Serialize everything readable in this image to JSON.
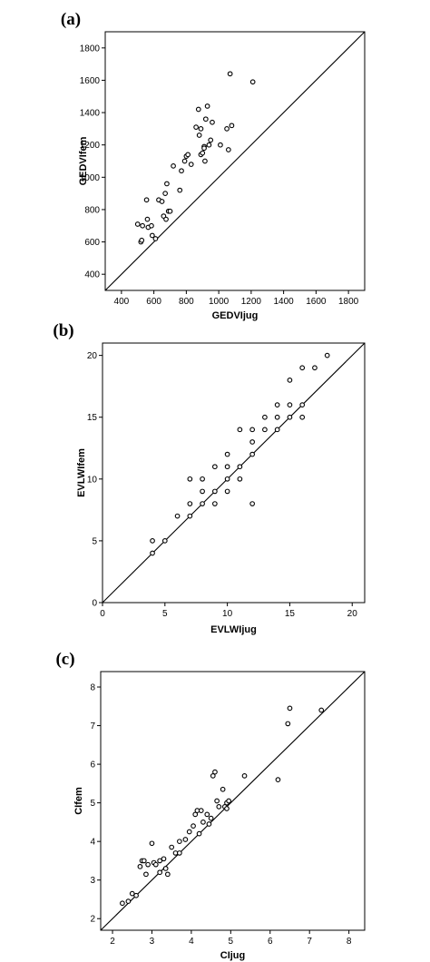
{
  "chart_data": [
    {
      "type": "scatter",
      "panel_label": "(a)",
      "xlabel": "GEDVIjug",
      "ylabel": "GEDVIfem",
      "xlim": [
        300,
        1900
      ],
      "ylim": [
        300,
        1900
      ],
      "xticks": [
        400,
        600,
        800,
        1000,
        1200,
        1400,
        1600,
        1800
      ],
      "yticks": [
        400,
        600,
        800,
        1000,
        1200,
        1400,
        1600,
        1800
      ],
      "grid": false,
      "identity_line": true,
      "points": [
        [
          500,
          710
        ],
        [
          520,
          600
        ],
        [
          525,
          610
        ],
        [
          530,
          700
        ],
        [
          555,
          860
        ],
        [
          560,
          740
        ],
        [
          565,
          690
        ],
        [
          585,
          700
        ],
        [
          590,
          640
        ],
        [
          610,
          620
        ],
        [
          630,
          860
        ],
        [
          650,
          850
        ],
        [
          660,
          760
        ],
        [
          670,
          900
        ],
        [
          675,
          740
        ],
        [
          680,
          960
        ],
        [
          690,
          790
        ],
        [
          700,
          790
        ],
        [
          720,
          1070
        ],
        [
          760,
          920
        ],
        [
          770,
          1040
        ],
        [
          790,
          1100
        ],
        [
          800,
          1130
        ],
        [
          810,
          1140
        ],
        [
          830,
          1080
        ],
        [
          860,
          1310
        ],
        [
          875,
          1420
        ],
        [
          880,
          1260
        ],
        [
          890,
          1300
        ],
        [
          890,
          1140
        ],
        [
          900,
          1150
        ],
        [
          910,
          1190
        ],
        [
          910,
          1180
        ],
        [
          915,
          1100
        ],
        [
          920,
          1360
        ],
        [
          930,
          1440
        ],
        [
          940,
          1200
        ],
        [
          950,
          1230
        ],
        [
          960,
          1340
        ],
        [
          1010,
          1200
        ],
        [
          1050,
          1300
        ],
        [
          1060,
          1170
        ],
        [
          1070,
          1640
        ],
        [
          1080,
          1320
        ],
        [
          1210,
          1590
        ]
      ]
    },
    {
      "type": "scatter",
      "panel_label": "(b)",
      "xlabel": "EVLWIjug",
      "ylabel": "EVLWIfem",
      "xlim": [
        0,
        21
      ],
      "ylim": [
        0,
        21
      ],
      "xticks": [
        0,
        5,
        10,
        15,
        20
      ],
      "yticks": [
        0,
        5,
        10,
        15,
        20
      ],
      "grid": false,
      "identity_line": true,
      "points": [
        [
          4,
          4
        ],
        [
          4,
          5
        ],
        [
          5,
          5
        ],
        [
          6,
          7
        ],
        [
          7,
          7
        ],
        [
          7,
          8
        ],
        [
          7,
          10
        ],
        [
          8,
          8
        ],
        [
          8,
          9
        ],
        [
          8,
          10
        ],
        [
          9,
          8
        ],
        [
          9,
          9
        ],
        [
          9,
          11
        ],
        [
          10,
          9
        ],
        [
          10,
          10
        ],
        [
          10,
          11
        ],
        [
          10,
          12
        ],
        [
          11,
          10
        ],
        [
          11,
          11
        ],
        [
          11,
          14
        ],
        [
          12,
          8
        ],
        [
          12,
          12
        ],
        [
          12,
          13
        ],
        [
          12,
          14
        ],
        [
          13,
          14
        ],
        [
          13,
          15
        ],
        [
          14,
          14
        ],
        [
          14,
          15
        ],
        [
          14,
          16
        ],
        [
          15,
          15
        ],
        [
          15,
          16
        ],
        [
          15,
          18
        ],
        [
          16,
          15
        ],
        [
          16,
          16
        ],
        [
          16,
          19
        ],
        [
          17,
          19
        ],
        [
          18,
          20
        ]
      ]
    },
    {
      "type": "scatter",
      "panel_label": "(c)",
      "xlabel": "CIjug",
      "ylabel": "CIfem",
      "xlim": [
        1.7,
        8.4
      ],
      "ylim": [
        1.7,
        8.4
      ],
      "xticks": [
        2,
        3,
        4,
        5,
        6,
        7,
        8
      ],
      "yticks": [
        2,
        3,
        4,
        5,
        6,
        7,
        8
      ],
      "grid": false,
      "identity_line": true,
      "points": [
        [
          2.25,
          2.4
        ],
        [
          2.4,
          2.45
        ],
        [
          2.5,
          2.65
        ],
        [
          2.6,
          2.6
        ],
        [
          2.7,
          3.35
        ],
        [
          2.75,
          3.5
        ],
        [
          2.8,
          3.5
        ],
        [
          2.85,
          3.15
        ],
        [
          2.9,
          3.4
        ],
        [
          3.0,
          3.95
        ],
        [
          3.05,
          3.45
        ],
        [
          3.1,
          3.4
        ],
        [
          3.2,
          3.5
        ],
        [
          3.2,
          3.2
        ],
        [
          3.3,
          3.55
        ],
        [
          3.35,
          3.3
        ],
        [
          3.4,
          3.15
        ],
        [
          3.5,
          3.85
        ],
        [
          3.6,
          3.7
        ],
        [
          3.7,
          3.7
        ],
        [
          3.7,
          4.0
        ],
        [
          3.85,
          4.05
        ],
        [
          3.95,
          4.25
        ],
        [
          4.05,
          4.4
        ],
        [
          4.1,
          4.7
        ],
        [
          4.15,
          4.8
        ],
        [
          4.2,
          4.2
        ],
        [
          4.25,
          4.8
        ],
        [
          4.3,
          4.5
        ],
        [
          4.4,
          4.7
        ],
        [
          4.45,
          4.45
        ],
        [
          4.5,
          4.6
        ],
        [
          4.55,
          5.7
        ],
        [
          4.6,
          5.8
        ],
        [
          4.65,
          5.05
        ],
        [
          4.7,
          4.9
        ],
        [
          4.8,
          5.35
        ],
        [
          4.85,
          4.9
        ],
        [
          4.9,
          5.0
        ],
        [
          4.9,
          4.85
        ],
        [
          4.95,
          5.05
        ],
        [
          5.35,
          5.7
        ],
        [
          6.2,
          5.6
        ],
        [
          6.45,
          7.05
        ],
        [
          6.5,
          7.45
        ],
        [
          7.3,
          7.4
        ]
      ]
    }
  ]
}
